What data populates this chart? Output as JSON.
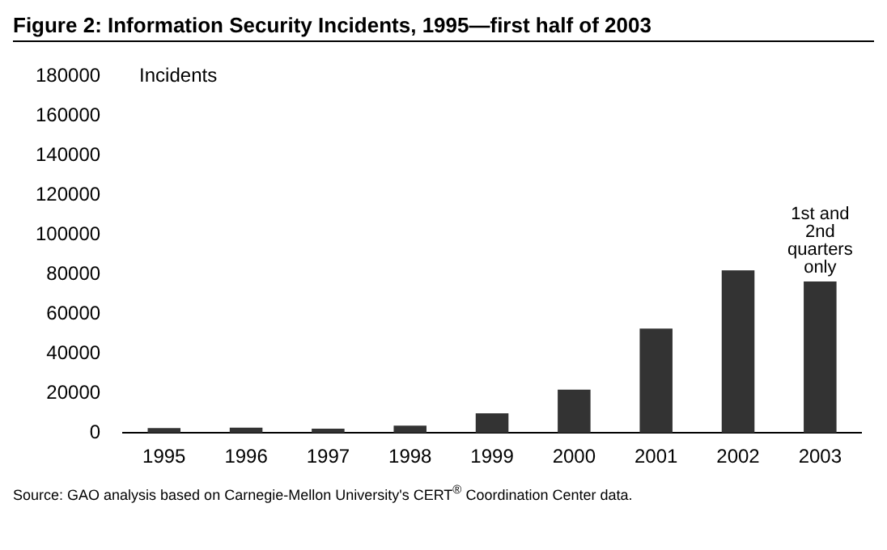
{
  "chart_data": {
    "type": "bar",
    "title": "Figure 2: Information Security Incidents, 1995—first half of 2003",
    "ylabel": "Incidents",
    "categories": [
      "1995",
      "1996",
      "1997",
      "1998",
      "1999",
      "2000",
      "2001",
      "2002",
      "2003"
    ],
    "values": [
      2400,
      2600,
      2100,
      3700,
      9900,
      21800,
      52700,
      82100,
      76400
    ],
    "color": "#333333",
    "ylim": [
      0,
      180000
    ],
    "yticks": [
      0,
      20000,
      40000,
      60000,
      80000,
      100000,
      120000,
      140000,
      160000,
      180000
    ],
    "grid": false,
    "legend": false,
    "annotations": [
      {
        "text": "1st and\n2nd\nquarters\nonly",
        "x": "2003",
        "y": 76400
      },
      "Source: GAO analysis based on Carnegie-Mellon University's CERT$^{®}$ Coordination Center data."
    ]
  }
}
